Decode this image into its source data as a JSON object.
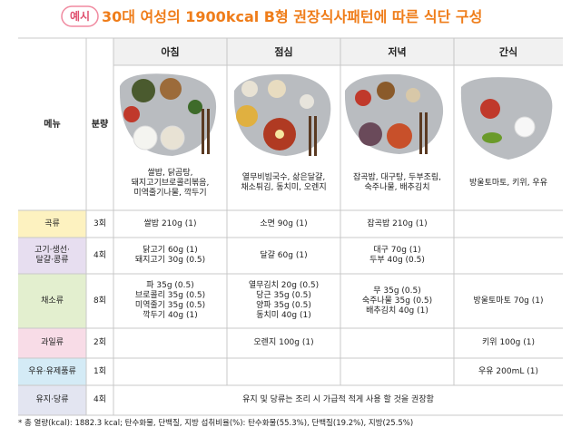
{
  "badge": "예시",
  "title": "30대 여성의 1900kcal B형 권장식사패턴에 따른 식단 구성",
  "table": {
    "header": [
      "메뉴",
      "분량",
      "아침",
      "점심",
      "저녁",
      "간식"
    ],
    "captions": [
      [
        "쌀밥, 닭곰탕,",
        "돼지고기브로콜리볶음,",
        "미역줄기나물, 깍두기"
      ],
      [
        "열무비빔국수, 삶은달걀,",
        "채소튀김, 동치미, 오렌지"
      ],
      [
        "잡곡밥, 대구탕, 두부조림,",
        "숙주나물, 배추김치"
      ],
      [
        "방울토마토, 키위, 우유"
      ]
    ],
    "rows": [
      {
        "label": [
          "곡류"
        ],
        "amount": "3회",
        "cells": [
          [
            "쌀밥 210g (1)"
          ],
          [
            "소면 90g (1)"
          ],
          [
            "잡곡밥 210g (1)"
          ],
          []
        ]
      },
      {
        "label": [
          "고기·생선·",
          "달걀·콩류"
        ],
        "amount": "4회",
        "cells": [
          [
            "닭고기 60g (1)",
            "돼지고기 30g (0.5)"
          ],
          [
            "달걀 60g (1)"
          ],
          [
            "대구 70g (1)",
            "두부 40g (0.5)"
          ],
          []
        ]
      },
      {
        "label": [
          "채소류"
        ],
        "amount": "8회",
        "cells": [
          [
            "파 35g (0.5)",
            "브로콜리 35g (0.5)",
            "미역줄기 35g (0.5)",
            "깍두기 40g (1)"
          ],
          [
            "열무김치 20g (0.5)",
            "당근 35g (0.5)",
            "양파 35g (0.5)",
            "동치미 40g (1)"
          ],
          [
            "무 35g (0.5)",
            "숙주나물 35g (0.5)",
            "배추김치 40g (1)"
          ],
          [
            "방울토마토 70g (1)"
          ]
        ]
      },
      {
        "label": [
          "과일류"
        ],
        "amount": "2회",
        "cells": [
          [],
          [
            "오렌지 100g (1)"
          ],
          [],
          [
            "키위 100g (1)"
          ]
        ]
      },
      {
        "label": [
          "우유·유제품류"
        ],
        "amount": "1회",
        "cells": [
          [],
          [],
          [],
          [
            "우유 200mL (1)"
          ]
        ]
      },
      {
        "label": [
          "유지·당류"
        ],
        "amount": "4회",
        "note": "유지 및 당류는 조리 시 가급적 적게 사용 할 것을 권장함"
      }
    ]
  },
  "footnote": "* 총 열량(kcal): 1882.3 kcal; 탄수화물, 단백질, 지방 섭취비율(%): 탄수화물(55.3%), 단백질(19.2%), 지방(25.5%)"
}
